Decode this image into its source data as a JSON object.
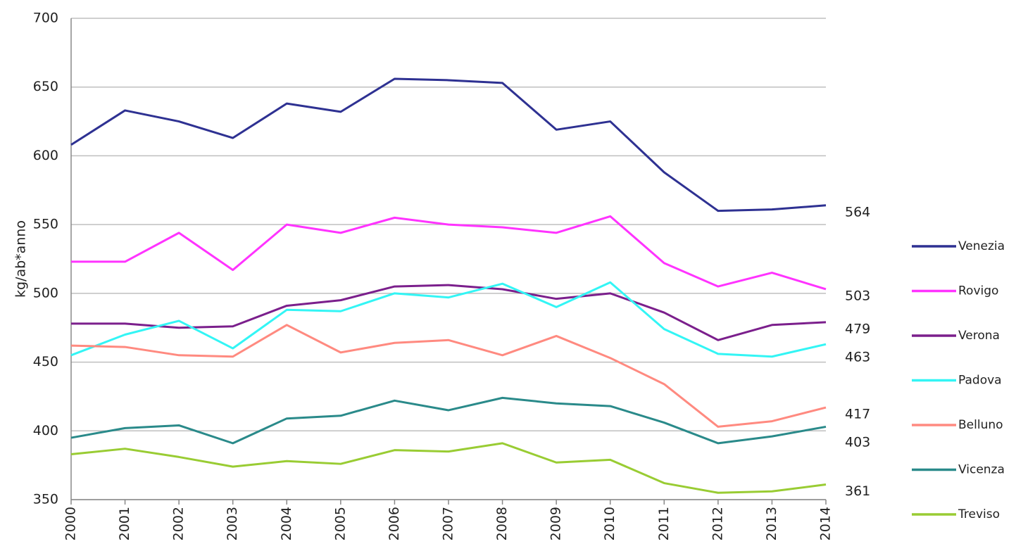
{
  "chart_data": {
    "type": "line",
    "y_label": "kg/ab*anno",
    "categories": [
      "2000",
      "2001",
      "2002",
      "2003",
      "2004",
      "2005",
      "2006",
      "2007",
      "2008",
      "2009",
      "2010",
      "2011",
      "2012",
      "2013",
      "2014"
    ],
    "ylim": [
      350,
      700
    ],
    "yticks": [
      350,
      400,
      450,
      500,
      550,
      600,
      650,
      700
    ],
    "grid": true,
    "series": [
      {
        "name": "Venezia",
        "color": "#2e3192",
        "values": [
          608,
          633,
          625,
          613,
          638,
          632,
          656,
          655,
          653,
          619,
          625,
          588,
          560,
          561,
          564
        ]
      },
      {
        "name": "Rovigo",
        "color": "#ff33ff",
        "values": [
          523,
          523,
          544,
          517,
          550,
          544,
          555,
          550,
          548,
          544,
          556,
          522,
          505,
          515,
          503
        ]
      },
      {
        "name": "Verona",
        "color": "#7b1f8c",
        "values": [
          478,
          478,
          475,
          476,
          491,
          495,
          505,
          506,
          503,
          496,
          500,
          486,
          466,
          477,
          479
        ]
      },
      {
        "name": "Padova",
        "color": "#33f5f5",
        "values": [
          455,
          470,
          480,
          460,
          488,
          487,
          500,
          497,
          507,
          490,
          508,
          474,
          456,
          454,
          463
        ]
      },
      {
        "name": "Belluno",
        "color": "#ff8a80",
        "values": [
          462,
          461,
          455,
          454,
          477,
          457,
          464,
          466,
          455,
          469,
          453,
          434,
          403,
          407,
          417
        ]
      },
      {
        "name": "Vicenza",
        "color": "#2a8a8a",
        "values": [
          395,
          402,
          404,
          391,
          409,
          411,
          422,
          415,
          424,
          420,
          418,
          406,
          391,
          396,
          403
        ]
      },
      {
        "name": "Treviso",
        "color": "#99cc33",
        "values": [
          383,
          387,
          381,
          374,
          378,
          376,
          386,
          385,
          391,
          377,
          379,
          362,
          355,
          356,
          361
        ]
      }
    ]
  }
}
